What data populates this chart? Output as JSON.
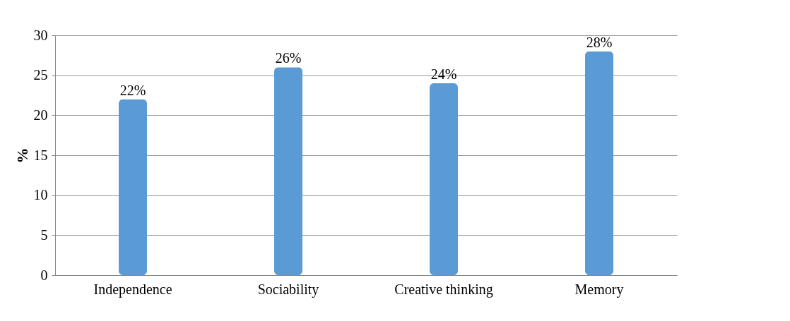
{
  "chart_data": {
    "type": "bar",
    "ylabel": "%",
    "categories": [
      "Independence",
      "Sociability",
      "Creative thinking",
      "Memory"
    ],
    "values": [
      22,
      26,
      24,
      28
    ],
    "value_labels": [
      "22%",
      "26%",
      "24%",
      "28%"
    ],
    "color": "#5b9bd5",
    "ylim": [
      0,
      30
    ],
    "yticks": [
      0,
      5,
      10,
      15,
      20,
      25,
      30
    ],
    "grid": "y"
  }
}
